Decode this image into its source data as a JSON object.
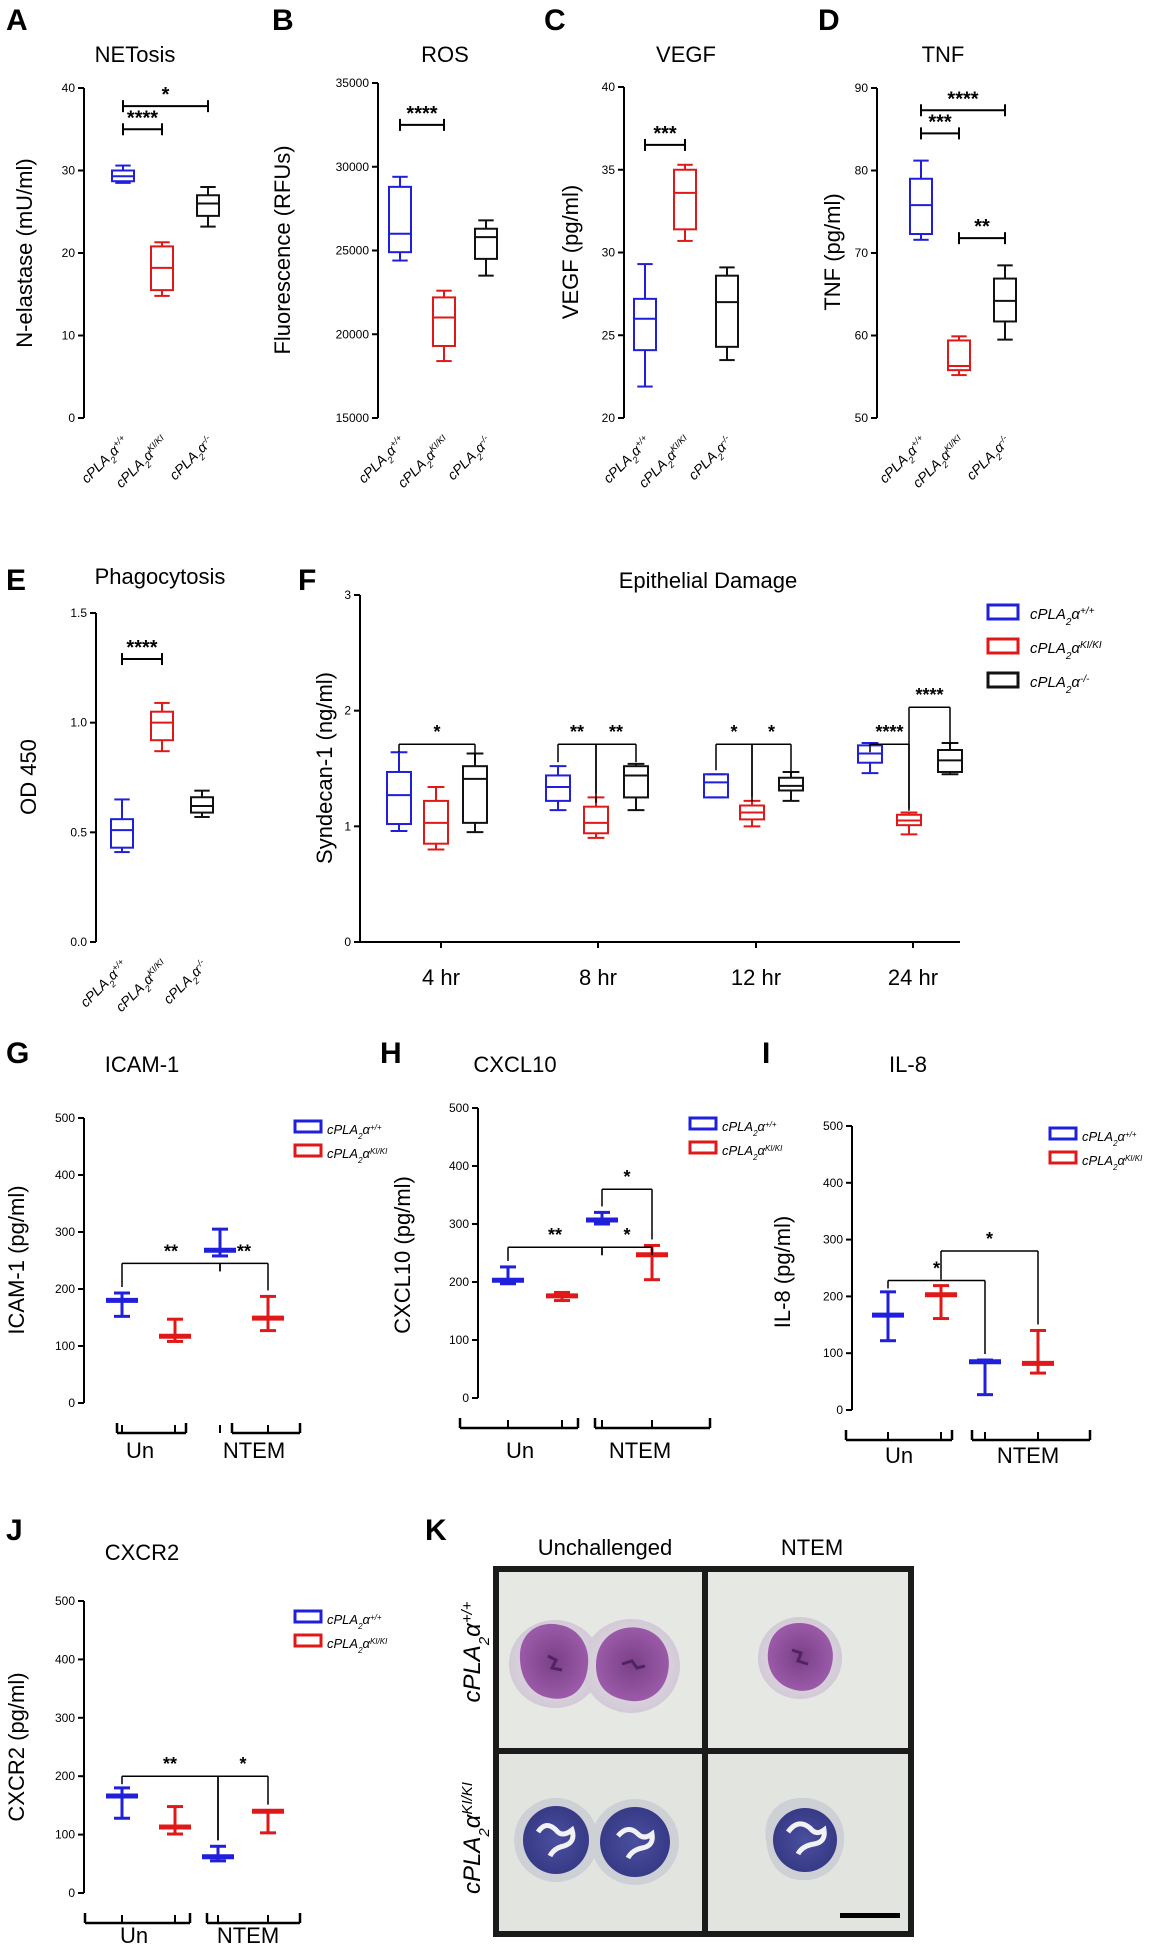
{
  "colors": {
    "wt": "#1f1fdc",
    "ki": "#e01818",
    "ko": "#111111",
    "cell_bg": "#e4e6e3",
    "frame": "#1b1b1b"
  },
  "genotypes": {
    "wt": {
      "base": "cPLA",
      "sub": "2",
      "alpha": "α",
      "sup": "+/+"
    },
    "ki": {
      "base": "cPLA",
      "sub": "2",
      "alpha": "α",
      "sup": "KI/KI"
    },
    "ko": {
      "base": "cPLA",
      "sub": "2",
      "alpha": "α",
      "sup": "-/-"
    }
  },
  "chart_data": [
    {
      "panel": "A",
      "type": "box",
      "title": "NETosis",
      "ylabel": "N-elastase (mU/ml)",
      "ylim": [
        0,
        40
      ],
      "yticks": [
        "0",
        "10",
        "20",
        "30",
        "40"
      ],
      "categories": [
        "wt",
        "ki",
        "ko"
      ],
      "boxes": [
        {
          "group": "wt",
          "min": 28.5,
          "q1": 28.7,
          "median": 29.3,
          "q3": 30.0,
          "max": 30.6
        },
        {
          "group": "ki",
          "min": 14.8,
          "q1": 15.5,
          "median": 18.2,
          "q3": 20.8,
          "max": 21.3
        },
        {
          "group": "ko",
          "min": 23.2,
          "q1": 24.5,
          "median": 26.0,
          "q3": 27.0,
          "max": 28.0
        }
      ],
      "brackets": [
        {
          "from": 0,
          "to": 1,
          "label": "****",
          "y": 35.0
        },
        {
          "from": 0,
          "to": 2,
          "label": "*",
          "y": 37.8
        }
      ]
    },
    {
      "panel": "B",
      "type": "box",
      "title": "ROS",
      "ylabel": "Fluorescence (RFUs)",
      "ylim": [
        15000,
        35000
      ],
      "yticks": [
        "15000",
        "20000",
        "25000",
        "30000",
        "35000"
      ],
      "categories": [
        "wt",
        "ki",
        "ko"
      ],
      "boxes": [
        {
          "group": "wt",
          "min": 24400,
          "q1": 24900,
          "median": 26000,
          "q3": 28800,
          "max": 29400
        },
        {
          "group": "ki",
          "min": 18400,
          "q1": 19300,
          "median": 21000,
          "q3": 22200,
          "max": 22600
        },
        {
          "group": "ko",
          "min": 23500,
          "q1": 24500,
          "median": 25800,
          "q3": 26300,
          "max": 26800
        }
      ],
      "brackets": [
        {
          "from": 0,
          "to": 1,
          "label": "****",
          "y": 32500
        }
      ]
    },
    {
      "panel": "C",
      "type": "box",
      "title": "VEGF",
      "ylabel": "VEGF (pg/ml)",
      "ylim": [
        20,
        40
      ],
      "yticks": [
        "20",
        "25",
        "30",
        "35",
        "40"
      ],
      "categories": [
        "wt",
        "ki",
        "ko"
      ],
      "boxes": [
        {
          "group": "wt",
          "min": 21.9,
          "q1": 24.1,
          "median": 26.0,
          "q3": 27.2,
          "max": 29.3
        },
        {
          "group": "ki",
          "min": 30.7,
          "q1": 31.4,
          "median": 33.6,
          "q3": 35.0,
          "max": 35.3
        },
        {
          "group": "ko",
          "min": 23.5,
          "q1": 24.3,
          "median": 27.0,
          "q3": 28.6,
          "max": 29.1
        }
      ],
      "brackets": [
        {
          "from": 0,
          "to": 1,
          "label": "***",
          "y": 36.5
        }
      ]
    },
    {
      "panel": "D",
      "type": "box",
      "title": "TNF",
      "ylabel": "TNF (pg/ml)",
      "ylim": [
        50,
        90
      ],
      "yticks": [
        "50",
        "60",
        "70",
        "80",
        "90"
      ],
      "categories": [
        "wt",
        "ki",
        "ko"
      ],
      "boxes": [
        {
          "group": "wt",
          "min": 71.6,
          "q1": 72.3,
          "median": 75.8,
          "q3": 79.0,
          "max": 81.2
        },
        {
          "group": "ki",
          "min": 55.2,
          "q1": 55.8,
          "median": 56.3,
          "q3": 59.4,
          "max": 59.9
        },
        {
          "group": "ko",
          "min": 59.5,
          "q1": 61.7,
          "median": 64.2,
          "q3": 66.9,
          "max": 68.5
        }
      ],
      "brackets": [
        {
          "from": 0,
          "to": 1,
          "label": "***",
          "y": 84.5
        },
        {
          "from": 0,
          "to": 2,
          "label": "****",
          "y": 87.3
        },
        {
          "from": 1,
          "to": 2,
          "label": "**",
          "y": 71.8
        }
      ]
    },
    {
      "panel": "E",
      "type": "box",
      "title": "Phagocytosis",
      "ylabel": "OD 450",
      "ylim": [
        0,
        1.5
      ],
      "yticks": [
        "0.0",
        "0.5",
        "1.0",
        "1.5"
      ],
      "categories": [
        "wt",
        "ki",
        "ko"
      ],
      "boxes": [
        {
          "group": "wt",
          "min": 0.41,
          "q1": 0.43,
          "median": 0.51,
          "q3": 0.56,
          "max": 0.65
        },
        {
          "group": "ki",
          "min": 0.87,
          "q1": 0.92,
          "median": 1.0,
          "q3": 1.05,
          "max": 1.09
        },
        {
          "group": "ko",
          "min": 0.57,
          "q1": 0.59,
          "median": 0.62,
          "q3": 0.66,
          "max": 0.69
        }
      ],
      "brackets": [
        {
          "from": 0,
          "to": 1,
          "label": "****",
          "y": 1.29
        }
      ]
    },
    {
      "panel": "F",
      "type": "grouped-box",
      "title": "Epithelial Damage",
      "ylabel": "Syndecan-1 (ng/ml)",
      "ylim": [
        0,
        3
      ],
      "yticks": [
        "0",
        "1",
        "2",
        "3"
      ],
      "categories": [
        "4 hr",
        "8 hr",
        "12 hr",
        "24 hr"
      ],
      "series": [
        "wt",
        "ki",
        "ko"
      ],
      "groups": [
        [
          {
            "min": 0.96,
            "q1": 1.02,
            "median": 1.27,
            "q3": 1.47,
            "max": 1.64
          },
          {
            "min": 0.8,
            "q1": 0.85,
            "median": 1.03,
            "q3": 1.22,
            "max": 1.34
          },
          {
            "min": 0.95,
            "q1": 1.03,
            "median": 1.41,
            "q3": 1.52,
            "max": 1.63
          }
        ],
        [
          {
            "min": 1.14,
            "q1": 1.22,
            "median": 1.34,
            "q3": 1.44,
            "max": 1.52
          },
          {
            "min": 0.9,
            "q1": 0.94,
            "median": 1.03,
            "q3": 1.17,
            "max": 1.25
          },
          {
            "min": 1.14,
            "q1": 1.25,
            "median": 1.44,
            "q3": 1.52,
            "max": 1.54
          }
        ],
        [
          {
            "min": 1.25,
            "q1": 1.25,
            "median": 1.38,
            "q3": 1.45,
            "max": 1.45
          },
          {
            "min": 1.0,
            "q1": 1.06,
            "median": 1.12,
            "q3": 1.18,
            "max": 1.22
          },
          {
            "min": 1.22,
            "q1": 1.31,
            "median": 1.35,
            "q3": 1.42,
            "max": 1.47
          }
        ],
        [
          {
            "min": 1.46,
            "q1": 1.55,
            "median": 1.63,
            "q3": 1.7,
            "max": 1.72
          },
          {
            "min": 0.93,
            "q1": 1.01,
            "median": 1.05,
            "q3": 1.1,
            "max": 1.12
          },
          {
            "min": 1.45,
            "q1": 1.47,
            "median": 1.57,
            "q3": 1.66,
            "max": 1.72
          }
        ]
      ],
      "brackets": [
        {
          "group": 0,
          "from": 0,
          "to": 2,
          "label": "*",
          "y": 1.71
        },
        {
          "group": 1,
          "from": 0,
          "to": 1,
          "label": "**",
          "y": 1.71
        },
        {
          "group": 1,
          "from": 1,
          "to": 2,
          "label": "**",
          "y": 1.71
        },
        {
          "group": 2,
          "from": 0,
          "to": 1,
          "label": "*",
          "y": 1.71
        },
        {
          "group": 2,
          "from": 1,
          "to": 2,
          "label": "*",
          "y": 1.71
        },
        {
          "group": 3,
          "from": 0,
          "to": 1,
          "label": "****",
          "y": 1.71
        },
        {
          "group": 3,
          "from": 1,
          "to": 2,
          "label": "****",
          "y": 2.03
        }
      ],
      "legend": [
        "wt",
        "ki",
        "ko"
      ]
    },
    {
      "panel": "G",
      "type": "mean-range",
      "title": "ICAM-1",
      "ylabel": "ICAM-1 (pg/ml)",
      "ylim": [
        0,
        500
      ],
      "yticks": [
        "0",
        "100",
        "200",
        "300",
        "400",
        "500"
      ],
      "categories": [
        "Un",
        "NTEM"
      ],
      "series": [
        "wt",
        "ki"
      ],
      "points": [
        {
          "group": "wt",
          "mean": 180,
          "low": 152,
          "high": 193
        },
        {
          "group": "ki",
          "mean": 117,
          "low": 108,
          "high": 147
        },
        {
          "group": "wt",
          "mean": 268,
          "low": 258,
          "high": 305
        },
        {
          "group": "ki",
          "mean": 149,
          "low": 127,
          "high": 187
        }
      ],
      "brackets": [
        {
          "from": 0,
          "to": 2,
          "label": "**",
          "y": 245
        },
        {
          "from": 2,
          "to": 3,
          "label": "**",
          "y": 245
        }
      ],
      "legend": [
        "wt",
        "ki"
      ]
    },
    {
      "panel": "H",
      "type": "mean-range",
      "title": "CXCL10",
      "ylabel": "CXCL10 (pg/ml)",
      "ylim": [
        0,
        500
      ],
      "yticks": [
        "0",
        "100",
        "200",
        "300",
        "400",
        "500"
      ],
      "categories": [
        "Un",
        "NTEM"
      ],
      "series": [
        "wt",
        "ki"
      ],
      "points": [
        {
          "group": "wt",
          "mean": 203,
          "low": 197,
          "high": 226
        },
        {
          "group": "ki",
          "mean": 176,
          "low": 168,
          "high": 182
        },
        {
          "group": "wt",
          "mean": 307,
          "low": 300,
          "high": 320
        },
        {
          "group": "ki",
          "mean": 247,
          "low": 204,
          "high": 263
        }
      ],
      "brackets": [
        {
          "from": 0,
          "to": 2,
          "label": "**",
          "y": 260
        },
        {
          "from": 2,
          "to": 3,
          "label": "*",
          "y": 260
        },
        {
          "from": 2,
          "to": 3,
          "label": "*",
          "y": 360,
          "wide": true
        }
      ],
      "legend": [
        "wt",
        "ki"
      ]
    },
    {
      "panel": "I",
      "type": "mean-range",
      "title": "IL-8",
      "ylabel": "IL-8 (pg/ml)",
      "ylim": [
        0,
        500
      ],
      "yticks": [
        "0",
        "100",
        "200",
        "300",
        "400",
        "500"
      ],
      "categories": [
        "Un",
        "NTEM"
      ],
      "series": [
        "wt",
        "ki"
      ],
      "points": [
        {
          "group": "wt",
          "mean": 167,
          "low": 122,
          "high": 208
        },
        {
          "group": "ki",
          "mean": 203,
          "low": 161,
          "high": 219
        },
        {
          "group": "wt",
          "mean": 85,
          "low": 27,
          "high": 88
        },
        {
          "group": "ki",
          "mean": 82,
          "low": 65,
          "high": 140
        }
      ],
      "brackets": [
        {
          "from": 0,
          "to": 2,
          "label": "*",
          "y": 228
        },
        {
          "from": 1,
          "to": 3,
          "label": "*",
          "y": 280
        }
      ],
      "legend": [
        "wt",
        "ki"
      ]
    },
    {
      "panel": "J",
      "type": "mean-range",
      "title": "CXCR2",
      "ylabel": "CXCR2 (pg/ml)",
      "ylim": [
        0,
        500
      ],
      "yticks": [
        "0",
        "100",
        "200",
        "300",
        "400",
        "500"
      ],
      "categories": [
        "Un",
        "NTEM"
      ],
      "series": [
        "wt",
        "ki"
      ],
      "points": [
        {
          "group": "wt",
          "mean": 166,
          "low": 128,
          "high": 180
        },
        {
          "group": "ki",
          "mean": 113,
          "low": 101,
          "high": 148
        },
        {
          "group": "wt",
          "mean": 62,
          "low": 55,
          "high": 80
        },
        {
          "group": "ki",
          "mean": 140,
          "low": 103,
          "high": 141
        }
      ],
      "brackets": [
        {
          "from": 0,
          "to": 2,
          "label": "**",
          "y": 200
        },
        {
          "from": 2,
          "to": 3,
          "label": "*",
          "y": 200
        }
      ],
      "legend": [
        "wt",
        "ki"
      ]
    }
  ],
  "micrographs": {
    "panel": "K",
    "columns": [
      "Unchallenged",
      "NTEM"
    ],
    "rows": [
      "wt",
      "ki"
    ]
  }
}
